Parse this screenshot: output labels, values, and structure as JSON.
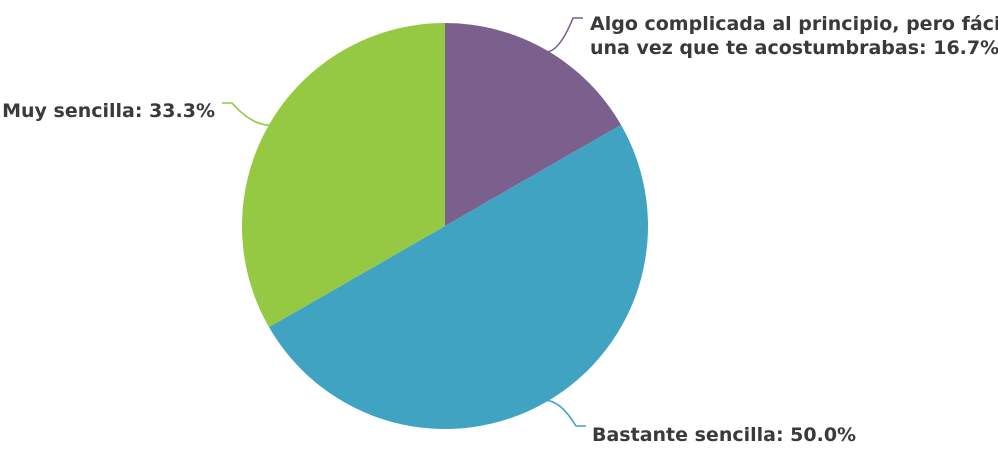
{
  "chart_data": {
    "type": "pie",
    "slices": [
      {
        "label": "Algo complicada al principio, pero fácil una vez que te acostumbrabas",
        "label_lines": [
          "Algo complicada al principio, pero fácil",
          "una vez que te acostumbrabas: 16.7%"
        ],
        "value": 16.7,
        "color": "#7b5f8c"
      },
      {
        "label": "Bastante sencilla",
        "label_lines": [
          "Bastante sencilla: 50.0%"
        ],
        "value": 50.0,
        "color": "#40a3c2"
      },
      {
        "label": "Muy sencilla",
        "label_lines": [
          "Muy sencilla: 33.3%"
        ],
        "value": 33.3,
        "color": "#95c843"
      }
    ],
    "start_angle": "12 o'clock",
    "direction": "clockwise",
    "legend": "none"
  }
}
